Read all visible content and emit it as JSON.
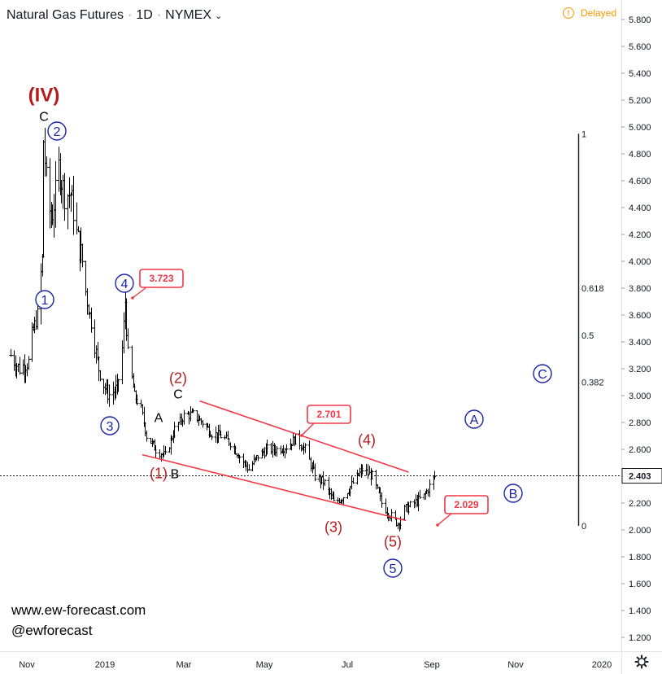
{
  "header": {
    "symbol": "Natural Gas Futures",
    "interval": "1D",
    "exchange": "NYMEX",
    "delayed": "Delayed",
    "delayed_icon": "clock-icon"
  },
  "watermark": {
    "website": "www.ew-forecast.com",
    "handle": "@ewforecast"
  },
  "settings_icon": "gear-icon",
  "colors": {
    "bars": "#000000",
    "waves_red": "#b71c1c",
    "waves_blue": "#1a23a8",
    "trendline": "#f23645",
    "delayed": "#ff9800"
  },
  "chart_data": {
    "type": "ohlc",
    "title": "Natural Gas Futures · 1D · NYMEX",
    "x_ticks": [
      "Nov",
      "2019",
      "Mar",
      "May",
      "Jul",
      "Sep",
      "Nov",
      "2020"
    ],
    "y_ticks": [
      "5.800",
      "5.600",
      "5.400",
      "5.200",
      "5.000",
      "4.800",
      "4.600",
      "4.400",
      "4.200",
      "4.000",
      "3.800",
      "3.600",
      "3.400",
      "3.200",
      "3.000",
      "2.800",
      "2.600",
      "2.400",
      "2.200",
      "2.000",
      "1.800",
      "1.600",
      "1.400",
      "1.200"
    ],
    "ylim": [
      1.1,
      5.95
    ],
    "last_price": "2.403",
    "close_path": [
      [
        "2018-10-19",
        3.3
      ],
      [
        "2018-10-26",
        3.2
      ],
      [
        "2018-11-02",
        3.25
      ],
      [
        "2018-11-05",
        3.45
      ],
      [
        "2018-11-09",
        3.6
      ],
      [
        "2018-11-13",
        4.0
      ],
      [
        "2018-11-14",
        4.9
      ],
      [
        "2018-11-16",
        4.6
      ],
      [
        "2018-11-20",
        4.3
      ],
      [
        "2018-11-26",
        4.7
      ],
      [
        "2018-11-30",
        4.5
      ],
      [
        "2018-12-05",
        4.5
      ],
      [
        "2018-12-10",
        4.2
      ],
      [
        "2018-12-14",
        4.0
      ],
      [
        "2018-12-18",
        3.7
      ],
      [
        "2018-12-21",
        3.55
      ],
      [
        "2018-12-27",
        3.2
      ],
      [
        "2019-01-03",
        3.0
      ],
      [
        "2019-01-10",
        3.05
      ],
      [
        "2019-01-14",
        3.35
      ],
      [
        "2019-01-16",
        3.7
      ],
      [
        "2019-01-18",
        3.3
      ],
      [
        "2019-01-23",
        3.0
      ],
      [
        "2019-01-28",
        2.9
      ],
      [
        "2019-02-01",
        2.7
      ],
      [
        "2019-02-08",
        2.6
      ],
      [
        "2019-02-15",
        2.55
      ],
      [
        "2019-02-22",
        2.75
      ],
      [
        "2019-03-01",
        2.85
      ],
      [
        "2019-03-08",
        2.86
      ],
      [
        "2019-03-15",
        2.8
      ],
      [
        "2019-03-22",
        2.72
      ],
      [
        "2019-03-29",
        2.7
      ],
      [
        "2019-04-05",
        2.65
      ],
      [
        "2019-04-12",
        2.55
      ],
      [
        "2019-04-19",
        2.45
      ],
      [
        "2019-04-26",
        2.55
      ],
      [
        "2019-05-03",
        2.6
      ],
      [
        "2019-05-10",
        2.6
      ],
      [
        "2019-05-17",
        2.62
      ],
      [
        "2019-05-24",
        2.68
      ],
      [
        "2019-05-31",
        2.6
      ],
      [
        "2019-06-07",
        2.4
      ],
      [
        "2019-06-14",
        2.35
      ],
      [
        "2019-06-21",
        2.2
      ],
      [
        "2019-06-28",
        2.25
      ],
      [
        "2019-07-05",
        2.35
      ],
      [
        "2019-07-12",
        2.45
      ],
      [
        "2019-07-19",
        2.4
      ],
      [
        "2019-07-26",
        2.2
      ],
      [
        "2019-08-02",
        2.1
      ],
      [
        "2019-08-07",
        2.05
      ],
      [
        "2019-08-12",
        2.15
      ],
      [
        "2019-08-19",
        2.2
      ],
      [
        "2019-08-26",
        2.25
      ],
      [
        "2019-09-03",
        2.4
      ]
    ],
    "callouts": [
      {
        "label": "3.723",
        "value": 3.723
      },
      {
        "label": "2.701",
        "value": 2.701
      },
      {
        "label": "2.029",
        "value": 2.029
      }
    ],
    "fib_levels": [
      {
        "label": "1",
        "value": 4.95
      },
      {
        "label": "0.618",
        "value": 3.8
      },
      {
        "label": "0.5",
        "value": 3.45
      },
      {
        "label": "0.382",
        "value": 3.1
      },
      {
        "label": "0",
        "value": 2.03
      }
    ],
    "wave_labels": [
      {
        "text": "(IV)",
        "color": "red",
        "style": "plain"
      },
      {
        "text": "C",
        "color": "black",
        "style": "plain"
      },
      {
        "text": "2",
        "color": "blue",
        "style": "circle"
      },
      {
        "text": "1",
        "color": "blue",
        "style": "circle"
      },
      {
        "text": "4",
        "color": "blue",
        "style": "circle"
      },
      {
        "text": "3",
        "color": "blue",
        "style": "circle"
      },
      {
        "text": "A",
        "color": "black",
        "style": "plain"
      },
      {
        "text": "(1)",
        "color": "red",
        "style": "plain"
      },
      {
        "text": "B",
        "color": "black",
        "style": "plain"
      },
      {
        "text": "(2)",
        "color": "red",
        "style": "plain"
      },
      {
        "text": "C",
        "color": "black",
        "style": "plain"
      },
      {
        "text": "(3)",
        "color": "red",
        "style": "plain"
      },
      {
        "text": "(4)",
        "color": "red",
        "style": "plain"
      },
      {
        "text": "(5)",
        "color": "red",
        "style": "plain"
      },
      {
        "text": "5",
        "color": "blue",
        "style": "circle"
      },
      {
        "text": "A",
        "color": "blue",
        "style": "circle"
      },
      {
        "text": "B",
        "color": "blue",
        "style": "circle"
      },
      {
        "text": "C",
        "color": "blue",
        "style": "circle"
      }
    ],
    "trendlines": [
      {
        "name": "upper",
        "from": [
          "2019-03-13",
          2.96
        ],
        "to": [
          "2019-08-15",
          2.43
        ]
      },
      {
        "name": "lower",
        "from": [
          "2019-01-29",
          2.56
        ],
        "to": [
          "2019-08-13",
          2.07
        ]
      }
    ]
  }
}
